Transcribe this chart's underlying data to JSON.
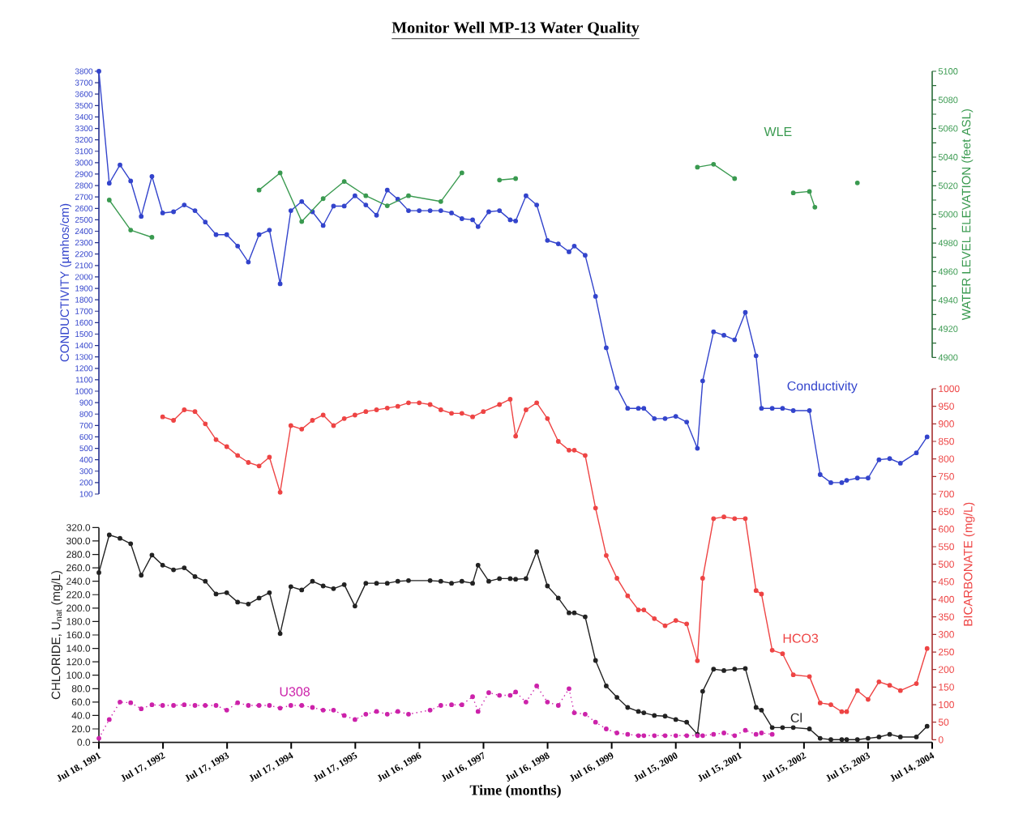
{
  "chart_data": [
    {
      "type": "line",
      "title": "Monitor Well MP-13 Water Quality",
      "ylabel": "CONDUCTIVITY (µmhos/cm)",
      "y2label": "WATER LEVEL ELEVATION (feet ASL)",
      "marker": "circle",
      "tick_labels": "y",
      "xlim": [
        "1991-07-18",
        "2004-07-14"
      ],
      "ylim": [
        100,
        3800
      ],
      "yticks": [
        100,
        200,
        300,
        400,
        500,
        600,
        700,
        800,
        900,
        1000,
        1100,
        1200,
        1300,
        1400,
        1500,
        1600,
        1700,
        1800,
        1900,
        2000,
        2100,
        2200,
        2300,
        2400,
        2500,
        2600,
        2700,
        2800,
        2900,
        3000,
        3100,
        3200,
        3300,
        3400,
        3500,
        3600,
        3700,
        3800
      ],
      "y2lim": [
        4900,
        5100
      ],
      "y2ticks": [
        4900,
        {
          "value": 4910,
          "label": null
        },
        4920,
        {
          "value": 4930,
          "label": null
        },
        4940,
        {
          "value": 4950,
          "label": null
        },
        4960,
        {
          "value": 4970,
          "label": null
        },
        4980,
        {
          "value": 4990,
          "label": null
        },
        5000,
        {
          "value": 5010,
          "label": null
        },
        5020,
        {
          "value": 5030,
          "label": null
        },
        5040,
        {
          "value": 5050,
          "label": null
        },
        5060,
        {
          "value": 5070,
          "label": null
        },
        5080,
        {
          "value": 5090,
          "label": null
        },
        5100
      ],
      "series": [
        {
          "name": "Conductivity",
          "color": "#3344cc",
          "line_style": "solid",
          "x": [
            "1991-07-18",
            "1991-09-15",
            "1991-11-15",
            "1992-01-15",
            "1992-03-15",
            "1992-05-15",
            "1992-07-15",
            "1992-09-15",
            "1992-11-15",
            "1993-01-15",
            "1993-03-15",
            "1993-05-15",
            "1993-07-15",
            "1993-09-15",
            "1993-11-15",
            "1994-01-15",
            "1994-03-15",
            "1994-05-15",
            "1994-07-15",
            "1994-09-15",
            "1994-11-15",
            "1995-01-15",
            "1995-03-15",
            "1995-05-15",
            "1995-07-15",
            "1995-09-15",
            "1995-11-15",
            "1996-01-15",
            "1996-03-15",
            "1996-05-15",
            "1996-07-15",
            "1996-09-15",
            "1996-11-15",
            "1997-01-15",
            "1997-03-15",
            "1997-05-15",
            "1997-06-15",
            "1997-08-15",
            "1997-10-15",
            "1997-12-15",
            "1998-01-15",
            "1998-03-15",
            "1998-05-15",
            "1998-07-15",
            "1998-09-15",
            "1998-11-15",
            "1998-12-15",
            "1999-02-15",
            "1999-04-15",
            "1999-06-15",
            "1999-08-15",
            "1999-10-15",
            "1999-12-15",
            "2000-01-15",
            "2000-03-15",
            "2000-05-15",
            "2000-07-15",
            "2000-09-15",
            "2000-11-15",
            "2000-12-15",
            "2001-02-15",
            "2001-04-15",
            "2001-06-15",
            "2001-08-15",
            "2001-10-15",
            "2001-11-15",
            "2002-01-15",
            "2002-03-15",
            "2002-05-15",
            "2002-08-15",
            "2002-10-15",
            "2002-12-15",
            "2003-02-15",
            "2003-03-15",
            "2003-05-15",
            "2003-07-15",
            "2003-09-15",
            "2003-11-15",
            "2004-01-15",
            "2004-04-15",
            "2004-06-15"
          ],
          "values": [
            3800,
            2820,
            2980,
            2840,
            2530,
            2880,
            2560,
            2570,
            2630,
            2580,
            2480,
            2370,
            2370,
            2270,
            2130,
            2370,
            2410,
            1940,
            2580,
            2660,
            2570,
            2450,
            2620,
            2620,
            2710,
            2630,
            2540,
            2760,
            2680,
            2580,
            2580,
            2580,
            2580,
            2560,
            2510,
            2500,
            2440,
            2570,
            2580,
            2500,
            2490,
            2710,
            2630,
            2320,
            2290,
            2220,
            2270,
            2190,
            1830,
            1380,
            1030,
            850,
            850,
            850,
            760,
            760,
            780,
            730,
            500,
            1090,
            1520,
            1490,
            1450,
            1690,
            1310,
            850,
            850,
            850,
            830,
            830,
            270,
            200,
            200,
            220,
            240,
            240,
            400,
            410,
            370,
            460,
            600
          ]
        },
        {
          "name": "WLE",
          "color": "#3a9a50",
          "axis": "y2",
          "line_style": "solid",
          "x": [
            "1991-09-15",
            "1992-01-15",
            "1992-05-15",
            "1993-03-15",
            "1994-01-15",
            "1994-05-15",
            "1994-09-15",
            "1995-01-15",
            "1995-05-15",
            "1995-09-15",
            "1996-01-15",
            "1996-05-15",
            "1996-11-15",
            "1997-03-15",
            "1997-07-15",
            "1997-10-15",
            "1998-01-15",
            "1999-06-15",
            "2000-11-15",
            "2001-02-15",
            "2001-06-15",
            "2001-12-15",
            "2002-05-15",
            "2002-08-15",
            "2002-09-15",
            "2003-01-15",
            "2003-05-15"
          ],
          "values": [
            5010,
            4989,
            4984,
            null,
            5017,
            5029,
            4995,
            5011,
            5023,
            5013,
            5006,
            5013,
            5009,
            5029,
            null,
            5024,
            5025,
            null,
            5033,
            5035,
            5025,
            null,
            5015,
            5016,
            5005,
            null,
            5022
          ]
        }
      ]
    },
    {
      "type": "line",
      "xlabel": "Time (months)",
      "ylabel": "CHLORIDE, U$_{nat}$ (mg/L)",
      "marker": "circle",
      "xlim": [
        "1991-07-18",
        "2004-07-14"
      ],
      "xticks": [
        {
          "value": "1991-07-18",
          "label": "Jul 18, 1991"
        },
        {
          "value": "1992-07-17",
          "label": "Jul 17, 1992"
        },
        {
          "value": "1993-07-17",
          "label": "Jul 17, 1993"
        },
        {
          "value": "1994-07-17",
          "label": "Jul 17, 1994"
        },
        {
          "value": "1995-07-17",
          "label": "Jul 17, 1995"
        },
        {
          "value": "1996-07-16",
          "label": "Jul 16, 1996"
        },
        {
          "value": "1997-07-16",
          "label": "Jul 16, 1997"
        },
        {
          "value": "1998-07-16",
          "label": "Jul 16, 1998"
        },
        {
          "value": "1999-07-16",
          "label": "Jul 16, 1999"
        },
        {
          "value": "2000-07-15",
          "label": "Jul 15, 2000"
        },
        {
          "value": "2001-07-15",
          "label": "Jul 15, 2001"
        },
        {
          "value": "2002-07-15",
          "label": "Jul 15, 2002"
        },
        {
          "value": "2003-07-15",
          "label": "Jul 15, 2003"
        },
        {
          "value": "2004-07-14",
          "label": "Jul 14, 2004"
        }
      ],
      "ylim": [
        0,
        320
      ],
      "yticks": [
        {
          "value": 0,
          "label": "0.0"
        },
        {
          "value": 20,
          "label": "20.0"
        },
        {
          "value": 40,
          "label": "40.0"
        },
        {
          "value": 60,
          "label": "60.0"
        },
        {
          "value": 80,
          "label": "80.0"
        },
        {
          "value": 100,
          "label": "100.0"
        },
        {
          "value": 120,
          "label": "120.0"
        },
        {
          "value": 140,
          "label": "140.0"
        },
        {
          "value": 160,
          "label": "160.0"
        },
        {
          "value": 180,
          "label": "180.0"
        },
        {
          "value": 200,
          "label": "200.0"
        },
        {
          "value": 220,
          "label": "220.0"
        },
        {
          "value": 240,
          "label": "240.0"
        },
        {
          "value": 260,
          "label": "260.0"
        },
        {
          "value": 280,
          "label": "280.0"
        },
        {
          "value": 300,
          "label": "300.0"
        },
        {
          "value": 320,
          "label": "320.0"
        }
      ],
      "series": [
        {
          "name": "Cl",
          "color": "#222222",
          "line_style": "solid",
          "x": [
            "1991-07-18",
            "1991-09-15",
            "1991-11-15",
            "1992-01-15",
            "1992-03-15",
            "1992-05-15",
            "1992-07-15",
            "1992-09-15",
            "1992-11-15",
            "1993-01-15",
            "1993-03-15",
            "1993-05-15",
            "1993-07-15",
            "1993-09-15",
            "1993-11-15",
            "1994-01-15",
            "1994-03-15",
            "1994-05-15",
            "1994-07-15",
            "1994-09-15",
            "1994-11-15",
            "1995-01-15",
            "1995-03-15",
            "1995-05-15",
            "1995-07-15",
            "1995-09-15",
            "1995-11-15",
            "1996-01-15",
            "1996-03-15",
            "1996-05-15",
            "1996-09-15",
            "1996-11-15",
            "1997-01-15",
            "1997-03-15",
            "1997-05-15",
            "1997-06-15",
            "1997-08-15",
            "1997-10-15",
            "1997-12-15",
            "1998-01-15",
            "1998-03-15",
            "1998-05-15",
            "1998-07-15",
            "1998-09-15",
            "1998-11-15",
            "1998-12-15",
            "1999-02-15",
            "1999-04-15",
            "1999-06-15",
            "1999-08-15",
            "1999-10-15",
            "1999-12-15",
            "2000-01-15",
            "2000-03-15",
            "2000-05-15",
            "2000-07-15",
            "2000-09-15",
            "2000-11-15",
            "2000-12-15",
            "2001-02-15",
            "2001-04-15",
            "2001-06-15",
            "2001-08-15",
            "2001-10-15",
            "2001-11-15",
            "2002-01-15",
            "2002-03-15",
            "2002-05-15",
            "2002-08-15",
            "2002-10-15",
            "2002-12-15",
            "2003-02-15",
            "2003-03-15",
            "2003-05-15",
            "2003-07-15",
            "2003-09-15",
            "2003-11-15",
            "2004-01-15",
            "2004-04-15",
            "2004-06-15"
          ],
          "values": [
            253,
            309,
            304,
            296,
            249,
            279,
            264,
            257,
            260,
            247,
            240,
            221,
            223,
            209,
            206,
            215,
            223,
            162,
            232,
            227,
            240,
            233,
            229,
            235,
            203,
            237,
            237,
            237,
            240,
            241,
            241,
            240,
            237,
            240,
            237,
            264,
            240,
            244,
            244,
            243,
            244,
            284,
            233,
            215,
            193,
            193,
            187,
            122,
            84,
            67,
            52,
            46,
            44,
            40,
            39,
            34,
            30,
            12,
            76,
            109,
            107,
            109,
            110,
            52,
            48,
            22,
            22,
            22,
            20,
            6,
            4,
            4,
            4,
            4,
            6,
            8,
            12,
            8,
            8,
            24
          ]
        },
        {
          "name": "U308",
          "color": "#cc22aa",
          "line_style": "dotted",
          "x": [
            "1991-07-18",
            "1991-09-15",
            "1991-11-15",
            "1992-01-15",
            "1992-03-15",
            "1992-05-15",
            "1992-07-15",
            "1992-09-15",
            "1992-11-15",
            "1993-01-15",
            "1993-03-15",
            "1993-05-15",
            "1993-07-15",
            "1993-09-15",
            "1993-11-15",
            "1994-01-15",
            "1994-03-15",
            "1994-05-15",
            "1994-07-15",
            "1994-09-15",
            "1994-11-15",
            "1995-01-15",
            "1995-03-15",
            "1995-05-15",
            "1995-07-15",
            "1995-09-15",
            "1995-11-15",
            "1996-01-15",
            "1996-03-15",
            "1996-05-15",
            "1996-09-15",
            "1996-11-15",
            "1997-01-15",
            "1997-03-15",
            "1997-05-15",
            "1997-06-15",
            "1997-08-15",
            "1997-10-15",
            "1997-12-15",
            "1998-01-15",
            "1998-03-15",
            "1998-05-15",
            "1998-07-15",
            "1998-09-15",
            "1998-11-15",
            "1998-12-15",
            "1999-02-15",
            "1999-04-15",
            "1999-06-15",
            "1999-08-15",
            "1999-10-15",
            "1999-12-15",
            "2000-01-15",
            "2000-03-15",
            "2000-05-15",
            "2000-07-15",
            "2000-09-15",
            "2000-11-15",
            "2000-12-15",
            "2001-02-15",
            "2001-04-15",
            "2001-06-15",
            "2001-08-15",
            "2001-10-15",
            "2001-11-15",
            "2002-01-15"
          ],
          "values": [
            6,
            34,
            60,
            59,
            50,
            56,
            55,
            55,
            56,
            55,
            55,
            55,
            48,
            59,
            55,
            55,
            55,
            51,
            55,
            55,
            52,
            48,
            48,
            40,
            34,
            42,
            46,
            42,
            46,
            42,
            48,
            55,
            56,
            56,
            68,
            46,
            74,
            70,
            70,
            75,
            60,
            84,
            60,
            55,
            80,
            44,
            42,
            30,
            20,
            14,
            12,
            10,
            10,
            10,
            10,
            10,
            10,
            10,
            10,
            12,
            14,
            10,
            18,
            12,
            14,
            12
          ]
        }
      ]
    },
    {
      "type": "line",
      "ylabel": "BICARBONATE (mg/L)",
      "marker": "circle",
      "tick_labels": "y",
      "xlim": [
        "1991-07-18",
        "2004-07-14"
      ],
      "ylim": [
        0,
        1000
      ],
      "yticks": [
        0,
        50,
        100,
        150,
        200,
        250,
        300,
        350,
        400,
        450,
        500,
        550,
        600,
        650,
        700,
        750,
        800,
        850,
        900,
        950,
        1000
      ],
      "series": [
        {
          "name": "HCO3",
          "color": "#ee4444",
          "line_style": "solid",
          "x": [
            "1992-07-15",
            "1992-09-15",
            "1992-11-15",
            "1993-01-15",
            "1993-03-15",
            "1993-05-15",
            "1993-07-15",
            "1993-09-15",
            "1993-11-15",
            "1994-01-15",
            "1994-03-15",
            "1994-05-15",
            "1994-07-15",
            "1994-09-15",
            "1994-11-15",
            "1995-01-15",
            "1995-03-15",
            "1995-05-15",
            "1995-07-15",
            "1995-09-15",
            "1995-11-15",
            "1996-01-15",
            "1996-03-15",
            "1996-05-15",
            "1996-07-15",
            "1996-09-15",
            "1996-11-15",
            "1997-01-15",
            "1997-03-15",
            "1997-05-15",
            "1997-07-15",
            "1997-10-15",
            "1997-12-15",
            "1998-01-15",
            "1998-03-15",
            "1998-05-15",
            "1998-07-15",
            "1998-09-15",
            "1998-11-15",
            "1998-12-15",
            "1999-02-15",
            "1999-04-15",
            "1999-06-15",
            "1999-08-15",
            "1999-10-15",
            "1999-12-15",
            "2000-01-15",
            "2000-03-15",
            "2000-05-15",
            "2000-07-15",
            "2000-09-15",
            "2000-11-15",
            "2000-12-15",
            "2001-02-15",
            "2001-04-15",
            "2001-06-15",
            "2001-08-15",
            "2001-10-15",
            "2001-11-15",
            "2002-01-15",
            "2002-03-15",
            "2002-05-15",
            "2002-08-15",
            "2002-10-15",
            "2002-12-15",
            "2003-02-15",
            "2003-03-15",
            "2003-05-15",
            "2003-07-15",
            "2003-09-15",
            "2003-11-15",
            "2004-01-15",
            "2004-04-15",
            "2004-06-15"
          ],
          "values": [
            920,
            910,
            940,
            935,
            900,
            855,
            835,
            810,
            790,
            780,
            805,
            705,
            895,
            885,
            910,
            925,
            895,
            915,
            925,
            935,
            940,
            945,
            950,
            960,
            960,
            955,
            940,
            930,
            930,
            920,
            935,
            955,
            970,
            865,
            940,
            960,
            915,
            850,
            825,
            825,
            810,
            660,
            525,
            460,
            410,
            370,
            370,
            345,
            325,
            340,
            330,
            225,
            460,
            630,
            635,
            630,
            630,
            425,
            415,
            255,
            245,
            185,
            180,
            105,
            100,
            80,
            80,
            140,
            115,
            165,
            155,
            140,
            160,
            260
          ]
        }
      ]
    }
  ]
}
